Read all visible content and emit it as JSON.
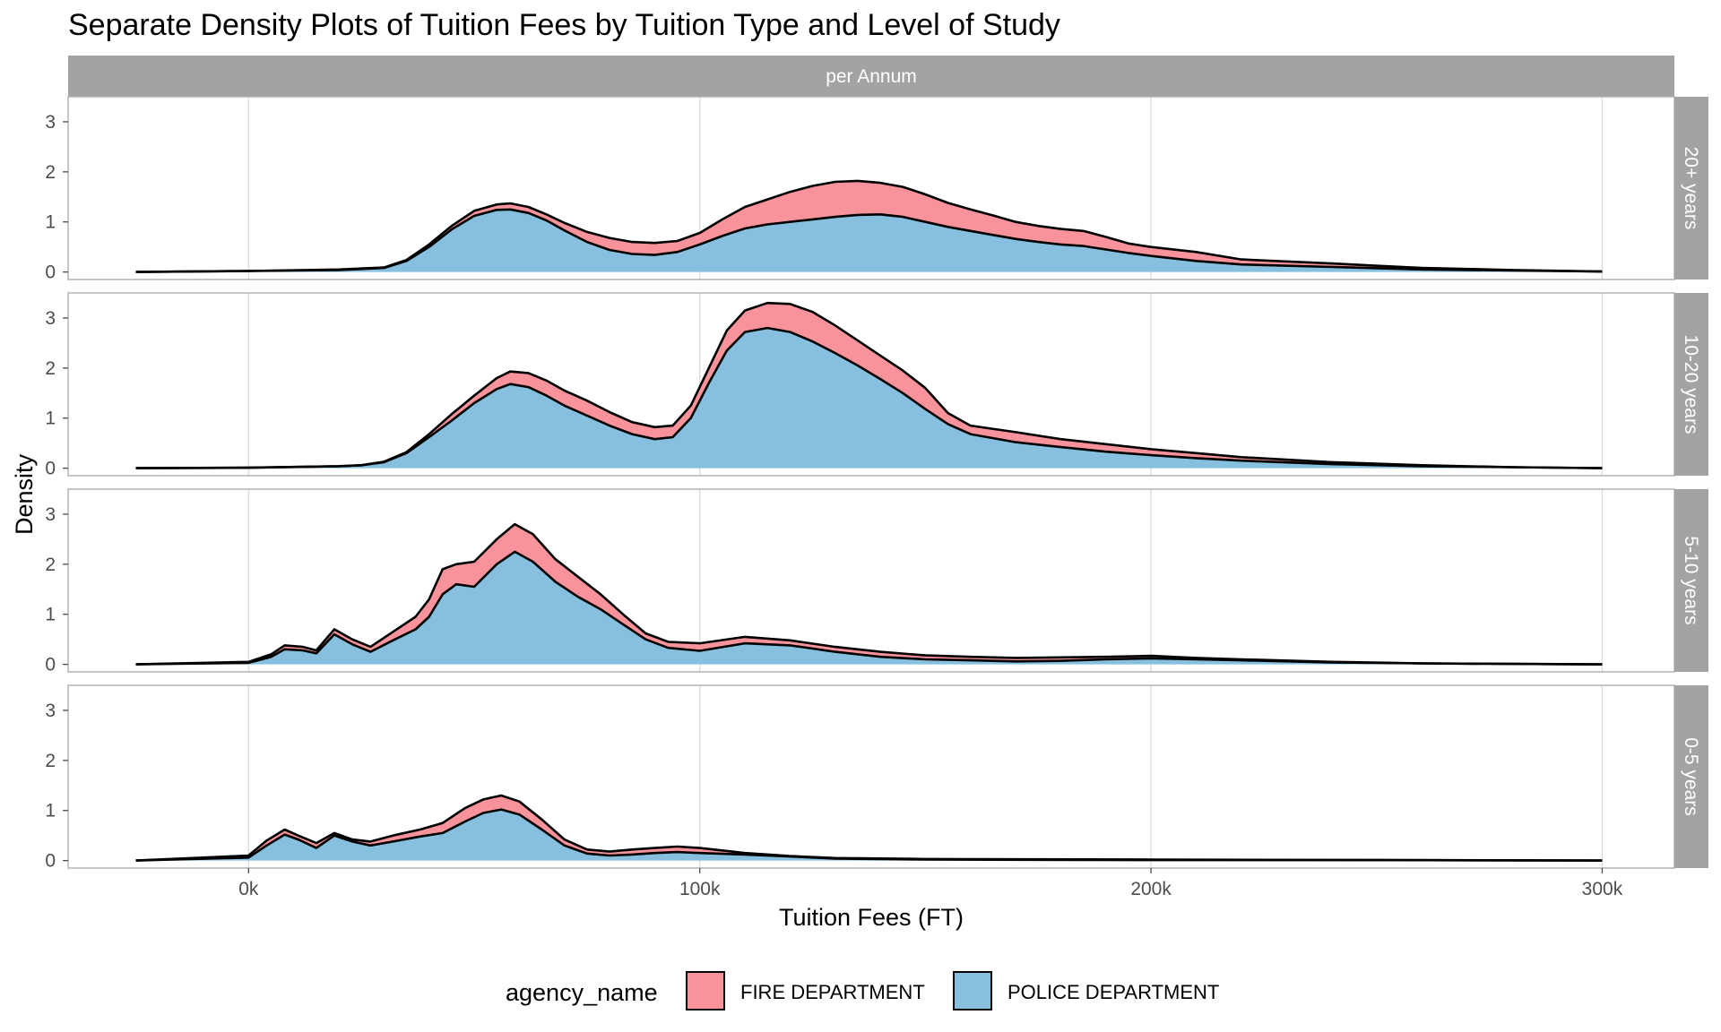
{
  "chart_data": {
    "type": "area",
    "stacked": true,
    "title": "Separate Density Plots of Tuition Fees by Tuition Type and Level of Study",
    "xlabel": "Tuition Fees (FT)",
    "ylabel": "Density",
    "x_ticks": [
      0,
      100000,
      200000,
      300000
    ],
    "x_tick_labels": [
      "0k",
      "100k",
      "200k",
      "300k"
    ],
    "y_ticks": [
      0,
      1,
      2,
      3
    ],
    "y_tick_labels": [
      "0",
      "1",
      "2",
      "3"
    ],
    "xlim": [
      -40000,
      316000
    ],
    "ylim": [
      -0.15,
      3.5
    ],
    "column_facets": [
      "per Annum"
    ],
    "grid": true,
    "legend": {
      "title": "agency_name",
      "position": "bottom",
      "items": [
        {
          "label": "FIRE DEPARTMENT",
          "color": "#f8939b"
        },
        {
          "label": "POLICE DEPARTMENT",
          "color": "#87c0df"
        }
      ]
    },
    "colors": {
      "fire": "#f8939b",
      "police": "#87c0df",
      "outline": "#000000",
      "strip": "#a3a3a3"
    },
    "series_names": [
      "FIRE DEPARTMENT",
      "POLICE DEPARTMENT"
    ],
    "panels": [
      {
        "label": "20+ years",
        "x": [
          -25000,
          0,
          20000,
          30000,
          35000,
          40000,
          45000,
          50000,
          55000,
          58000,
          62000,
          66000,
          70000,
          75000,
          80000,
          85000,
          90000,
          95000,
          100000,
          105000,
          110000,
          115000,
          120000,
          125000,
          130000,
          135000,
          140000,
          145000,
          150000,
          155000,
          160000,
          165000,
          170000,
          175000,
          180000,
          185000,
          190000,
          195000,
          200000,
          210000,
          220000,
          240000,
          260000,
          280000,
          300000
        ],
        "police": [
          0,
          0.02,
          0.04,
          0.08,
          0.22,
          0.5,
          0.85,
          1.12,
          1.24,
          1.25,
          1.18,
          1.03,
          0.83,
          0.6,
          0.44,
          0.36,
          0.34,
          0.4,
          0.55,
          0.72,
          0.87,
          0.95,
          1.0,
          1.05,
          1.1,
          1.14,
          1.15,
          1.1,
          1.0,
          0.9,
          0.82,
          0.74,
          0.66,
          0.6,
          0.55,
          0.52,
          0.45,
          0.38,
          0.32,
          0.22,
          0.15,
          0.1,
          0.05,
          0.03,
          0.01
        ],
        "total": [
          0,
          0.02,
          0.05,
          0.09,
          0.24,
          0.55,
          0.92,
          1.22,
          1.35,
          1.37,
          1.3,
          1.15,
          0.98,
          0.8,
          0.68,
          0.6,
          0.58,
          0.62,
          0.78,
          1.05,
          1.3,
          1.45,
          1.6,
          1.72,
          1.8,
          1.82,
          1.78,
          1.7,
          1.55,
          1.38,
          1.25,
          1.13,
          1.0,
          0.92,
          0.86,
          0.82,
          0.7,
          0.57,
          0.5,
          0.4,
          0.25,
          0.17,
          0.08,
          0.04,
          0.01
        ]
      },
      {
        "label": "10-20 years",
        "x": [
          -25000,
          0,
          20000,
          25000,
          30000,
          35000,
          40000,
          45000,
          50000,
          55000,
          58000,
          62000,
          66000,
          70000,
          75000,
          80000,
          85000,
          90000,
          94000,
          98000,
          102000,
          106000,
          110000,
          115000,
          120000,
          125000,
          130000,
          135000,
          140000,
          145000,
          150000,
          155000,
          160000,
          170000,
          180000,
          190000,
          200000,
          210000,
          220000,
          240000,
          260000,
          280000,
          300000
        ],
        "police": [
          0,
          0.01,
          0.04,
          0.06,
          0.12,
          0.3,
          0.62,
          0.95,
          1.3,
          1.58,
          1.68,
          1.62,
          1.45,
          1.25,
          1.05,
          0.85,
          0.68,
          0.58,
          0.62,
          1.0,
          1.7,
          2.35,
          2.72,
          2.8,
          2.72,
          2.53,
          2.3,
          2.05,
          1.78,
          1.5,
          1.18,
          0.88,
          0.68,
          0.52,
          0.42,
          0.33,
          0.26,
          0.2,
          0.15,
          0.08,
          0.04,
          0.02,
          0.0
        ],
        "total": [
          0,
          0.01,
          0.04,
          0.06,
          0.13,
          0.32,
          0.68,
          1.08,
          1.45,
          1.8,
          1.93,
          1.9,
          1.75,
          1.55,
          1.35,
          1.12,
          0.92,
          0.82,
          0.85,
          1.25,
          2.0,
          2.75,
          3.15,
          3.3,
          3.28,
          3.12,
          2.85,
          2.55,
          2.25,
          1.95,
          1.6,
          1.1,
          0.85,
          0.72,
          0.58,
          0.48,
          0.38,
          0.3,
          0.22,
          0.12,
          0.06,
          0.02,
          0.0
        ]
      },
      {
        "label": "5-10 years",
        "x": [
          -25000,
          0,
          5000,
          8000,
          12000,
          15000,
          19000,
          23000,
          27000,
          32000,
          37000,
          40000,
          43000,
          46000,
          50000,
          55000,
          59000,
          63000,
          68000,
          73000,
          78000,
          83000,
          88000,
          93000,
          100000,
          110000,
          120000,
          130000,
          140000,
          150000,
          160000,
          170000,
          180000,
          190000,
          200000,
          210000,
          220000,
          240000,
          260000,
          280000,
          300000
        ],
        "police": [
          0,
          0.03,
          0.15,
          0.3,
          0.28,
          0.22,
          0.6,
          0.4,
          0.25,
          0.48,
          0.7,
          0.95,
          1.4,
          1.6,
          1.55,
          2.0,
          2.25,
          2.05,
          1.65,
          1.35,
          1.1,
          0.8,
          0.5,
          0.33,
          0.27,
          0.42,
          0.38,
          0.25,
          0.15,
          0.1,
          0.08,
          0.06,
          0.07,
          0.1,
          0.12,
          0.1,
          0.08,
          0.04,
          0.02,
          0.01,
          0.0
        ],
        "total": [
          0,
          0.05,
          0.2,
          0.38,
          0.35,
          0.28,
          0.7,
          0.5,
          0.35,
          0.65,
          0.95,
          1.3,
          1.9,
          2.0,
          2.05,
          2.5,
          2.8,
          2.6,
          2.1,
          1.75,
          1.4,
          1.0,
          0.62,
          0.45,
          0.42,
          0.55,
          0.48,
          0.35,
          0.25,
          0.18,
          0.15,
          0.13,
          0.14,
          0.15,
          0.17,
          0.13,
          0.1,
          0.05,
          0.02,
          0.01,
          0.0
        ]
      },
      {
        "label": "0-5 years",
        "x": [
          -25000,
          0,
          4000,
          8000,
          11000,
          15000,
          19000,
          23000,
          27000,
          32000,
          38000,
          43000,
          48000,
          52000,
          56000,
          60000,
          65000,
          70000,
          75000,
          80000,
          85000,
          90000,
          95000,
          100000,
          110000,
          120000,
          130000,
          150000,
          200000,
          250000,
          300000
        ],
        "police": [
          0,
          0.06,
          0.3,
          0.52,
          0.42,
          0.25,
          0.5,
          0.38,
          0.3,
          0.38,
          0.48,
          0.55,
          0.78,
          0.95,
          1.02,
          0.92,
          0.62,
          0.3,
          0.14,
          0.1,
          0.12,
          0.15,
          0.17,
          0.15,
          0.12,
          0.08,
          0.04,
          0.02,
          0.01,
          0.01,
          0.0
        ],
        "total": [
          0,
          0.1,
          0.4,
          0.62,
          0.5,
          0.35,
          0.55,
          0.42,
          0.38,
          0.5,
          0.62,
          0.75,
          1.05,
          1.22,
          1.3,
          1.18,
          0.82,
          0.42,
          0.22,
          0.18,
          0.22,
          0.25,
          0.28,
          0.25,
          0.15,
          0.09,
          0.05,
          0.03,
          0.02,
          0.01,
          0.0
        ]
      }
    ]
  }
}
